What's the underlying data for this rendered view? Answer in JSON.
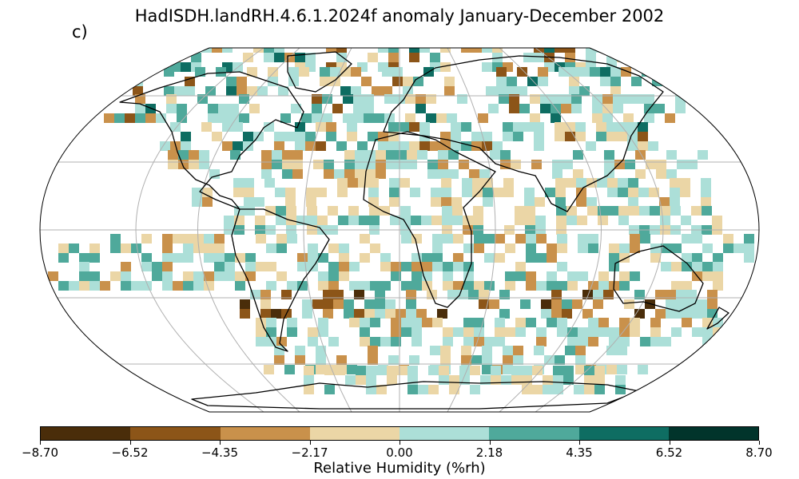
{
  "title": "HadISDH.landRH.4.6.1.2024f anomaly January-December 2002",
  "panel_label": "c)",
  "colorbar": {
    "label": "Relative Humidity (%rh)",
    "ticks": [
      "−8.70",
      "−6.52",
      "−4.35",
      "−2.17",
      "0.00",
      "2.18",
      "4.35",
      "6.52",
      "8.70"
    ],
    "colors": [
      "#4a2d0a",
      "#8c5518",
      "#c9914b",
      "#ebd6a6",
      "#acdfd8",
      "#4fa99b",
      "#0e6d62",
      "#01342b"
    ]
  },
  "map": {
    "projection": "robinson",
    "graticule": true,
    "grid_cells_by_row": [
      {
        "lat_band": "high-north",
        "classes": [
          "c3",
          "c2",
          "c4",
          "c5",
          "c3",
          "c4",
          "c4",
          "c3",
          "c5",
          "c6",
          "c4",
          "c5",
          "c1",
          "c2"
        ]
      },
      {
        "lat_band": "north",
        "classes": [
          "c2",
          "c1",
          "c3",
          "c4",
          "c4",
          "c5",
          "c4",
          "c3",
          "c2",
          "c4",
          "c5",
          "c6",
          "c4",
          "c3",
          "c5",
          "c4",
          "c5"
        ]
      },
      {
        "lat_band": "mid-north",
        "classes": [
          "c3",
          "c4",
          "c3",
          "c2",
          "c4",
          "c5",
          "c3",
          "c3",
          "c2",
          "c4",
          "c5",
          "c4",
          "c3",
          "c2",
          "c4",
          "c5"
        ]
      },
      {
        "lat_band": "subtropic-north",
        "classes": [
          "c4",
          "c3",
          "c5",
          "c4",
          "c3",
          "c2",
          "c4",
          "c3",
          "c4",
          "c5",
          "c4",
          "c3"
        ]
      },
      {
        "lat_band": "tropics",
        "classes": [
          "c3",
          "c4",
          "c5",
          "c4",
          "c3",
          "c2",
          "c4",
          "c5",
          "c4",
          "c3",
          "c5"
        ]
      },
      {
        "lat_band": "subtropic-south",
        "classes": [
          "c4",
          "c5",
          "c3",
          "c2",
          "c4",
          "c1",
          "c0",
          "c1",
          "c2",
          "c4",
          "c5"
        ]
      },
      {
        "lat_band": "south",
        "classes": [
          "c4",
          "c5",
          "c4",
          "c3",
          "c4",
          "c2",
          "c4"
        ]
      },
      {
        "lat_band": "far-south",
        "classes": [
          "c3",
          "c4",
          "c5",
          "c4",
          "c3"
        ]
      }
    ]
  }
}
